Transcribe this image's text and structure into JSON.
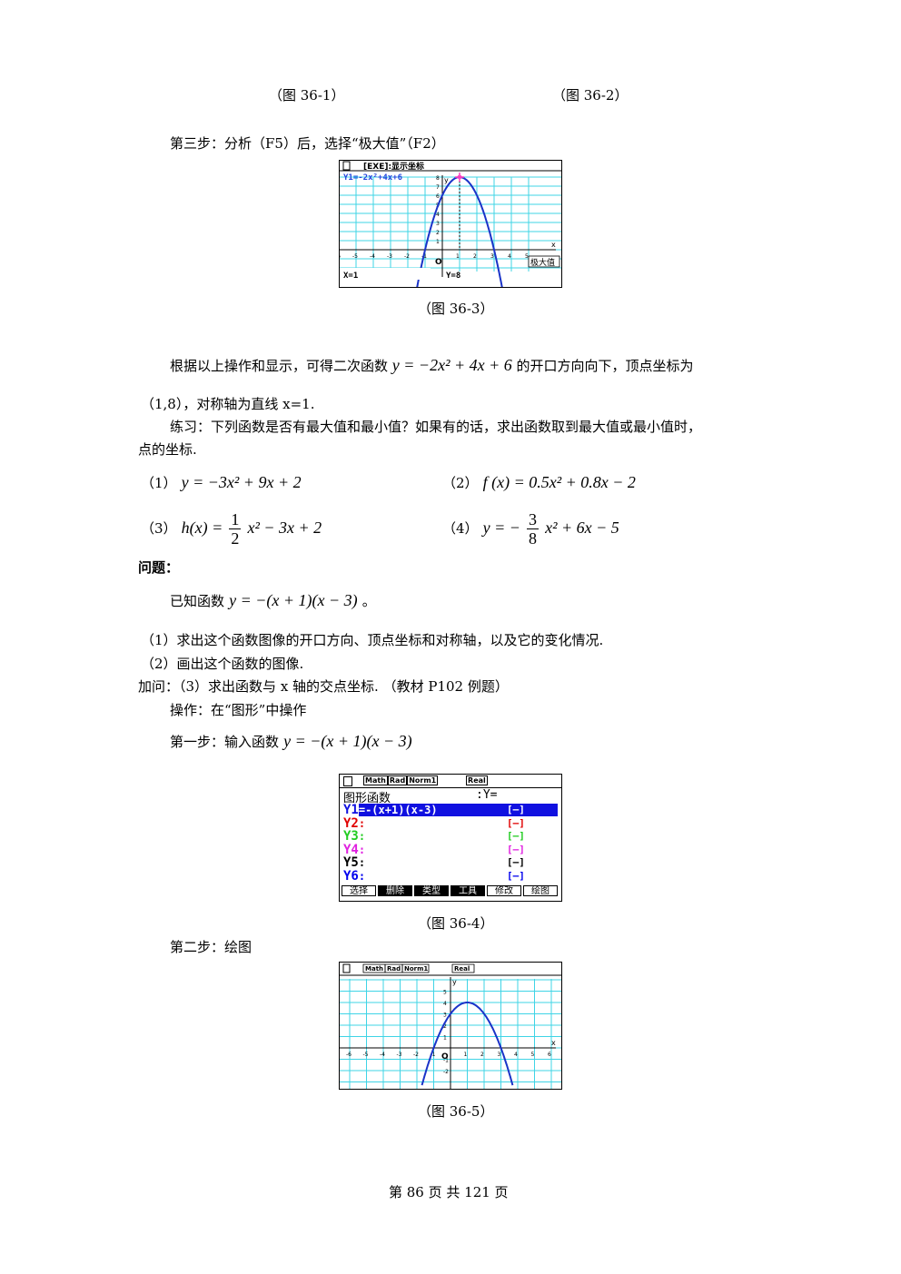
{
  "captions": {
    "fig1": "（图 36-1）",
    "fig2": "（图 36-2）",
    "fig3": "（图 36-3）",
    "fig4": "（图 36-4）",
    "fig5": "（图 36-5）"
  },
  "step3": "第三步：分析（F5）后，选择“极大值”（F2）",
  "screen3": {
    "header": "[EXE]:显示坐标",
    "func": "Y1=-2x²+4x+6",
    "x_readout": "X=1",
    "y_readout": "Y=8",
    "label": "极大值",
    "y_ticks": [
      "9",
      "8",
      "7",
      "6",
      "5",
      "4",
      "3",
      "2",
      "1"
    ],
    "x_ticks": [
      "-6",
      "-5",
      "-4",
      "-3",
      "-2",
      "-1",
      "1",
      "2",
      "3",
      "4",
      "5"
    ],
    "origin": "O",
    "axis_x": "x",
    "axis_y": "y",
    "vertex": [
      1,
      8
    ],
    "curve": {
      "a": -2,
      "b": 4,
      "c": 6
    }
  },
  "conclusion": {
    "before": "根据以上操作和显示，可得二次函数",
    "formula": "y = −2x² + 4x + 6",
    "after": "的开口方向向下，顶点坐标为",
    "line2": "（1,8），对称轴为直线 x=1."
  },
  "exercise": {
    "intro_line1": "练习：下列函数是否有最大值和最小值？如果有的话，求出函数取到最大值或最小值时，",
    "intro_line2": "点的坐标.",
    "items": [
      {
        "label": "（1）",
        "formula": "y = −3x² + 9x + 2"
      },
      {
        "label": "（2）",
        "formula": "f (x) = 0.5x² + 0.8x − 2"
      },
      {
        "label": "（3）",
        "pre": "h(x) =",
        "num": "1",
        "den": "2",
        "post": "x² − 3x + 2"
      },
      {
        "label": "（4）",
        "pre": "y = −",
        "num": "3",
        "den": "8",
        "post": "x² + 6x − 5"
      }
    ]
  },
  "problem": {
    "heading": "问题：",
    "given_pre": "已知函数",
    "given_formula": "y = −(x + 1)(x − 3)",
    "given_post": "。",
    "q1": "（1）求出这个函数图像的开口方向、顶点坐标和对称轴，以及它的变化情况.",
    "q2": "（2）画出这个函数的图像.",
    "q3": "加问：（3）求出函数与 x 轴的交点坐标. （教材 P102 例题）",
    "op": "操作：在“图形”中操作",
    "step1_pre": "第一步：输入函数",
    "step1_formula": "y = −(x + 1)(x − 3)",
    "step2": "第二步：绘图"
  },
  "screen4": {
    "status": [
      "Math",
      "Rad",
      "Norm1",
      "Real"
    ],
    "title": "图形函数",
    "title_right": ":Y=",
    "rows": [
      {
        "label": "Y1",
        "expr": "=-(x+1)(x-3)",
        "style": "[—]",
        "color": "#0000cc",
        "selected": true
      },
      {
        "label": "Y2",
        "expr": ":",
        "style": "[—]",
        "color": "#e00000"
      },
      {
        "label": "Y3",
        "expr": ":",
        "style": "[—]",
        "color": "#22cc22"
      },
      {
        "label": "Y4",
        "expr": ":",
        "style": "[—]",
        "color": "#e020e0"
      },
      {
        "label": "Y5",
        "expr": ":",
        "style": "[—]",
        "color": "#000000"
      },
      {
        "label": "Y6",
        "expr": ":",
        "style": "[—]",
        "color": "#0000ee"
      }
    ],
    "fkeys": [
      "选择",
      "删除",
      "类型",
      "工具",
      "修改",
      "绘图"
    ]
  },
  "screen5": {
    "status": [
      "Math",
      "Rad",
      "Norm1",
      "Real"
    ],
    "y_ticks": [
      "5",
      "4",
      "3",
      "2",
      "1",
      "-1",
      "-2"
    ],
    "x_ticks": [
      "-6",
      "-5",
      "-4",
      "-3",
      "-2",
      "-1",
      "1",
      "2",
      "3",
      "4",
      "5",
      "6"
    ],
    "origin": "O",
    "axis_x": "x",
    "axis_y": "y",
    "curve": {
      "a": -1,
      "b": 2,
      "c": 3
    }
  },
  "footer": "第 86 页 共 121 页",
  "colors": {
    "grid": "#3fd4e6",
    "curve": "#1a33c8",
    "marker": "#ff40c0",
    "func_text": "#2244dd",
    "selected_bg": "#1010e0"
  }
}
